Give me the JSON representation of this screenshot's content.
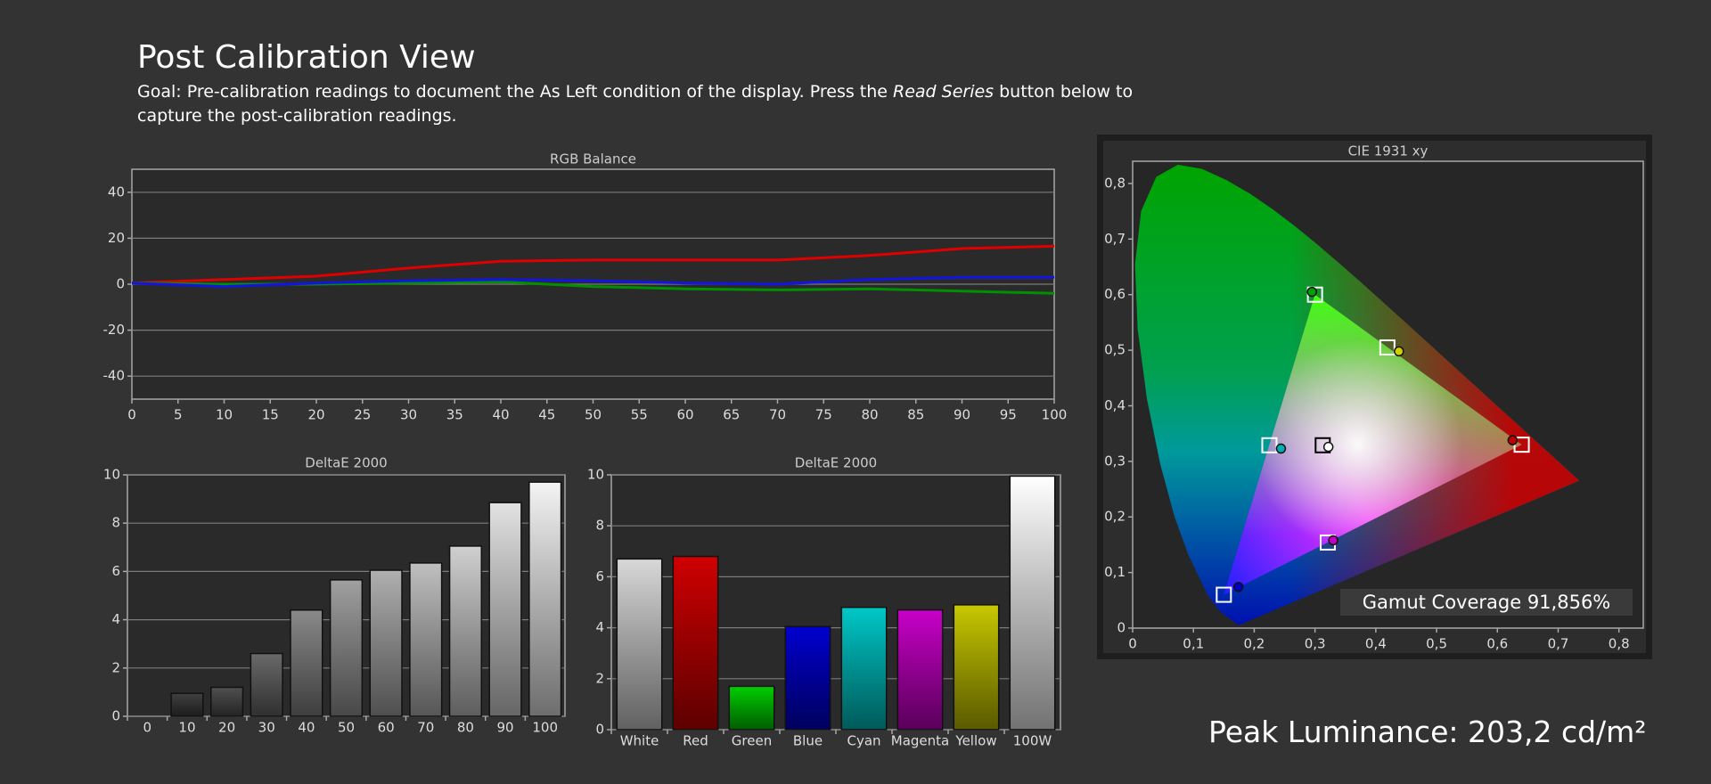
{
  "header": {
    "title": "Post Calibration View",
    "goal": [
      "Goal: Pre-calibration readings to document the As Left condition of the display. Press the ",
      "Read Series",
      " button below to capture the post-calibration readings."
    ]
  },
  "footer": {
    "peak_luminance": "Peak Luminance: 203,2 cd/m²"
  },
  "chart_data": [
    {
      "type": "line",
      "title": "RGB Balance",
      "x": [
        0,
        10,
        20,
        30,
        40,
        50,
        60,
        70,
        80,
        90,
        100
      ],
      "series": [
        {
          "color": "#e00000",
          "values": [
            0.5,
            2,
            3.5,
            7,
            10,
            10.5,
            10.5,
            10.5,
            12.5,
            15.5,
            16.5
          ]
        },
        {
          "color": "#009000",
          "values": [
            0.5,
            0,
            0,
            0.5,
            1,
            -1,
            -2,
            -2.5,
            -2,
            -3,
            -4
          ]
        },
        {
          "color": "#1414e0",
          "values": [
            0.5,
            -1,
            0.5,
            1.5,
            2,
            1.5,
            0.5,
            0,
            2,
            3,
            3
          ]
        }
      ],
      "xlim": [
        0,
        100
      ],
      "xticks": [
        0,
        5,
        10,
        15,
        20,
        25,
        30,
        35,
        40,
        45,
        50,
        55,
        60,
        65,
        70,
        75,
        80,
        85,
        90,
        95,
        100
      ],
      "ylim": [
        -50,
        50
      ],
      "yticks": [
        -40,
        -20,
        0,
        20,
        40
      ],
      "grid": true
    },
    {
      "type": "bar",
      "title": "DeltaE 2000",
      "categories": [
        "0",
        "10",
        "20",
        "30",
        "40",
        "50",
        "60",
        "70",
        "80",
        "90",
        "100"
      ],
      "values": [
        0,
        0.95,
        1.2,
        2.6,
        4.4,
        5.65,
        6.05,
        6.35,
        7.05,
        8.85,
        9.7
      ],
      "colors": [
        "#202020",
        "#404040",
        "#505050",
        "#6a6a6a",
        "#8a8a8a",
        "#a0a0a0",
        "#b0b0b0",
        "#c0c0c0",
        "#d0d0d0",
        "#e2e2e2",
        "#f4f4f4"
      ],
      "ylim": [
        0,
        10
      ],
      "yticks": [
        0,
        2,
        4,
        6,
        8,
        10
      ],
      "grid": true
    },
    {
      "type": "bar",
      "title": "DeltaE 2000",
      "categories": [
        "White",
        "Red",
        "Green",
        "Blue",
        "Cyan",
        "Magenta",
        "Yellow",
        "100W"
      ],
      "values": [
        6.7,
        6.8,
        1.7,
        4.05,
        4.8,
        4.7,
        4.9,
        9.95
      ],
      "colors": [
        "#d8d8d8",
        "#d00000",
        "#00d000",
        "#0000d0",
        "#00c8c8",
        "#c800c8",
        "#c8c800",
        "#ffffff"
      ],
      "ylim": [
        0,
        10
      ],
      "yticks": [
        0,
        2,
        4,
        6,
        8,
        10
      ],
      "grid": true
    },
    {
      "type": "scatter",
      "title": "CIE 1931 xy",
      "annotation": "Gamut Coverage 91,856%",
      "series": [
        {
          "marker": "square",
          "x": [
            0.64,
            0.3,
            0.15,
            0.3127,
            0.225,
            0.321,
            0.419
          ],
          "values": [
            0.33,
            0.6,
            0.06,
            0.329,
            0.329,
            0.154,
            0.505
          ],
          "colors": [
            "#ffffff",
            "#ffffff",
            "#ffffff",
            "#000000",
            "#ffffff",
            "#ffffff",
            "#ffffff"
          ]
        },
        {
          "marker": "circle",
          "x": [
            0.625,
            0.295,
            0.174,
            0.322,
            0.244,
            0.33,
            0.438
          ],
          "values": [
            0.338,
            0.605,
            0.074,
            0.326,
            0.323,
            0.158,
            0.498
          ],
          "colors": [
            "#c00000",
            "#00a000",
            "#0000c0",
            "#ffffff",
            "#00b0b0",
            "#c000c0",
            "#d0d000"
          ]
        }
      ],
      "xlim": [
        0,
        0.84
      ],
      "xticks": [
        0,
        {
          "value": 0.1,
          "label": "0,1"
        },
        {
          "value": 0.2,
          "label": "0,2"
        },
        {
          "value": 0.3,
          "label": "0,3"
        },
        {
          "value": 0.4,
          "label": "0,4"
        },
        {
          "value": 0.5,
          "label": "0,5"
        },
        {
          "value": 0.6,
          "label": "0,6"
        },
        {
          "value": 0.7,
          "label": "0,7"
        },
        {
          "value": 0.8,
          "label": "0,8"
        }
      ],
      "ylim": [
        0,
        0.84
      ],
      "yticks": [
        0,
        {
          "value": 0.1,
          "label": "0,1"
        },
        {
          "value": 0.2,
          "label": "0,2"
        },
        {
          "value": 0.3,
          "label": "0,3"
        },
        {
          "value": 0.4,
          "label": "0,4"
        },
        {
          "value": 0.5,
          "label": "0,5"
        },
        {
          "value": 0.6,
          "label": "0,6"
        },
        {
          "value": 0.7,
          "label": "0,7"
        },
        {
          "value": 0.8,
          "label": "0,8"
        }
      ],
      "grid": false
    }
  ]
}
